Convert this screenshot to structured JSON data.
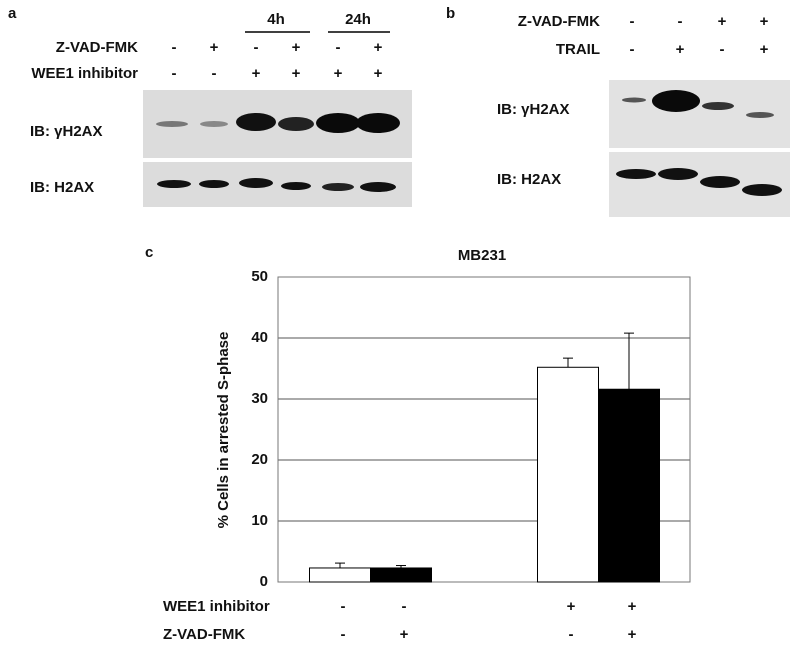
{
  "panel_a": {
    "label": "a",
    "time_labels": [
      "4h",
      "24h"
    ],
    "rows": [
      {
        "label": "Z-VAD-FMK",
        "signs": [
          "-",
          "+",
          "-",
          "+",
          "-",
          "+"
        ]
      },
      {
        "label": "WEE1 inhibitor",
        "signs": [
          "-",
          "-",
          "+",
          "+",
          "+",
          "+"
        ]
      }
    ],
    "blots": [
      "IB: γH2AX",
      "IB: H2AX"
    ]
  },
  "panel_b": {
    "label": "b",
    "rows": [
      {
        "label": "Z-VAD-FMK",
        "signs": [
          "-",
          "-",
          "+",
          "+"
        ]
      },
      {
        "label": "TRAIL",
        "signs": [
          "-",
          "+",
          "-",
          "+"
        ]
      }
    ],
    "blots": [
      "IB: γH2AX",
      "IB: H2AX"
    ]
  },
  "chart_data": {
    "type": "bar",
    "panel_label": "c",
    "title": "MB231",
    "y_label": "% Cells in arrested S-phase",
    "values": [
      2.3,
      2.3,
      35.2,
      31.6
    ],
    "errors": [
      0.8,
      0.4,
      1.5,
      9.2
    ],
    "colors": [
      "#ffffff",
      "#000000",
      "#ffffff",
      "#000000"
    ],
    "ylim": [
      0,
      50
    ],
    "yticks": [
      0,
      10,
      20,
      30,
      40,
      50
    ],
    "grid": true,
    "rows": [
      {
        "label": "WEE1 inhibitor",
        "signs": [
          "-",
          "-",
          "+",
          "+"
        ]
      },
      {
        "label": "Z-VAD-FMK",
        "signs": [
          "-",
          "+",
          "-",
          "+"
        ]
      }
    ]
  }
}
